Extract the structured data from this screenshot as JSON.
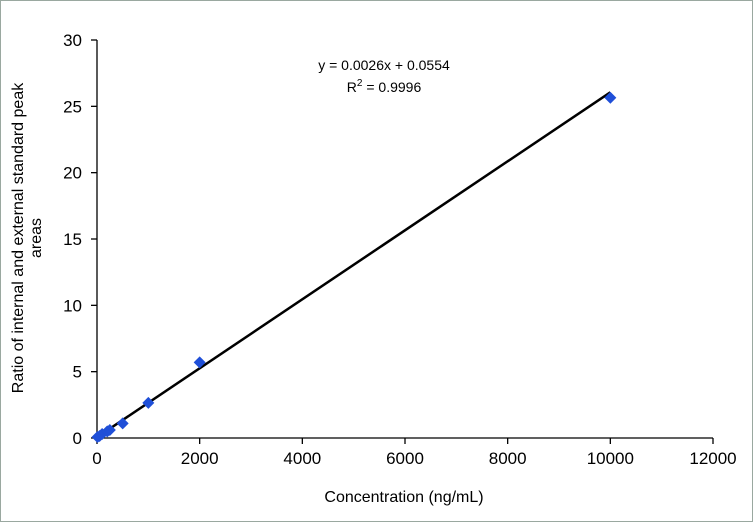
{
  "chart_data": {
    "type": "scatter",
    "title": "",
    "xlabel": "Concentration (ng/mL)",
    "ylabel_line1": "Ratio of internal and external standard peak",
    "ylabel_line2": "areas",
    "xlim": [
      0,
      12000
    ],
    "ylim": [
      0,
      30
    ],
    "xticks": [
      0,
      2000,
      4000,
      6000,
      8000,
      10000,
      12000
    ],
    "yticks": [
      0,
      5,
      10,
      15,
      20,
      25,
      30
    ],
    "grid": false,
    "legend": "none",
    "marker": "diamond",
    "marker_color": "#1f4fd8",
    "series": [
      {
        "x": [
          10,
          50,
          100,
          200,
          250,
          500,
          1000,
          2000,
          10000
        ],
        "y": [
          0.08,
          0.15,
          0.3,
          0.5,
          0.6,
          1.1,
          2.65,
          5.7,
          25.65
        ]
      }
    ],
    "trendline": {
      "slope": 0.0026,
      "intercept": 0.0554,
      "x_range": [
        0,
        10000
      ],
      "color": "#000000"
    },
    "annotation": {
      "equation": "y = 0.0026x + 0.0554",
      "r2_prefix": "R",
      "r2_sup": "2",
      "r2_value": " = 0.9996"
    }
  }
}
